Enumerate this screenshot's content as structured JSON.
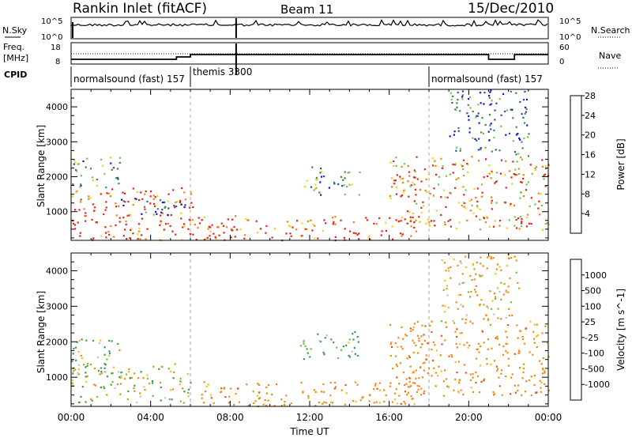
{
  "header": {
    "title": "Rankin Inlet (fitACF)",
    "beam": "Beam 11",
    "date": "15/Dec/2010"
  },
  "panels": {
    "nsky": {
      "left_label": "N.Sky",
      "right_label": "N.Search",
      "left_ticks": [
        "10^5",
        "10^0"
      ],
      "right_ticks": [
        "10^5",
        "10^0"
      ]
    },
    "freq": {
      "left_label_1": "Freq.",
      "left_label_2": "[MHz]",
      "right_label": "Nave",
      "left_ticks": [
        "18",
        "8"
      ],
      "right_ticks": [
        "60",
        "0"
      ]
    },
    "cpid": {
      "label": "CPID",
      "segments": [
        {
          "name": "normalsound (fast) 157",
          "start_hour": 0,
          "end_hour": 6
        },
        {
          "name": "themis 3300",
          "start_hour": 6,
          "end_hour": 18
        },
        {
          "name": "normalsound (fast) 157",
          "start_hour": 18,
          "end_hour": 24
        }
      ]
    }
  },
  "chart_data": [
    {
      "type": "heatmap",
      "name": "power",
      "ylabel": "Slant Range [km]",
      "xlabel": "",
      "xlim": [
        0,
        24
      ],
      "ylim": [
        180,
        4500
      ],
      "yticks": [
        1000,
        2000,
        3000,
        4000
      ],
      "colorbar": {
        "label": "Power [dB]",
        "ticks": [
          "4",
          "8",
          "12",
          "16",
          "20",
          "24",
          "28"
        ],
        "colors": [
          "#1010e0",
          "#2050b0",
          "#3a8a50",
          "#7ac050",
          "#f0d020",
          "#f08010",
          "#e82010"
        ]
      },
      "regions": [
        {
          "x0": 0.0,
          "x1": 6.2,
          "y0": 200,
          "y1": 1700,
          "level": 26
        },
        {
          "x0": 0.0,
          "x1": 2.5,
          "y0": 1700,
          "y1": 2600,
          "level": 10
        },
        {
          "x0": 2.5,
          "x1": 6.0,
          "y0": 900,
          "y1": 1400,
          "level": 6
        },
        {
          "x0": 6.0,
          "x1": 17.5,
          "y0": 200,
          "y1": 900,
          "level": 26
        },
        {
          "x0": 11.5,
          "x1": 14.5,
          "y0": 1500,
          "y1": 2300,
          "level": 10
        },
        {
          "x0": 16.0,
          "x1": 24.0,
          "y0": 500,
          "y1": 2600,
          "level": 22
        },
        {
          "x0": 19.0,
          "x1": 23.0,
          "y0": 2600,
          "y1": 4500,
          "level": 6
        }
      ]
    },
    {
      "type": "heatmap",
      "name": "velocity",
      "ylabel": "Slant Range [km]",
      "xlabel": "Time UT",
      "xlim": [
        0,
        24
      ],
      "ylim": [
        180,
        4500
      ],
      "yticks": [
        1000,
        2000,
        3000,
        4000
      ],
      "xticks": [
        "00:00",
        "04:00",
        "08:00",
        "12:00",
        "16:00",
        "20:00",
        "00:00"
      ],
      "colorbar": {
        "label": "Velocity [m s^-1]",
        "ticks": [
          "1000",
          "500",
          "100",
          "25",
          "-25",
          "-100",
          "-500",
          "-1000"
        ],
        "colors": [
          "#1a30c0",
          "#2a70b0",
          "#3a9a50",
          "#70c040",
          "#c0c0c0",
          "#f0c020",
          "#f08a10",
          "#f05010",
          "#e01010"
        ]
      },
      "regions": [
        {
          "x0": 0.0,
          "x1": 2.5,
          "y0": 1000,
          "y1": 2100,
          "level": 100
        },
        {
          "x0": 0.0,
          "x1": 6.0,
          "y0": 300,
          "y1": 1400,
          "level": 10
        },
        {
          "x0": 6.0,
          "x1": 17.5,
          "y0": 200,
          "y1": 900,
          "level": -300
        },
        {
          "x0": 11.5,
          "x1": 14.5,
          "y0": 1500,
          "y1": 2300,
          "level": 200
        },
        {
          "x0": 16.0,
          "x1": 24.0,
          "y0": 500,
          "y1": 2600,
          "level": -300
        },
        {
          "x0": 18.5,
          "x1": 22.5,
          "y0": 2600,
          "y1": 4500,
          "level": -150
        }
      ]
    }
  ],
  "dashed_times": [
    6,
    18
  ]
}
